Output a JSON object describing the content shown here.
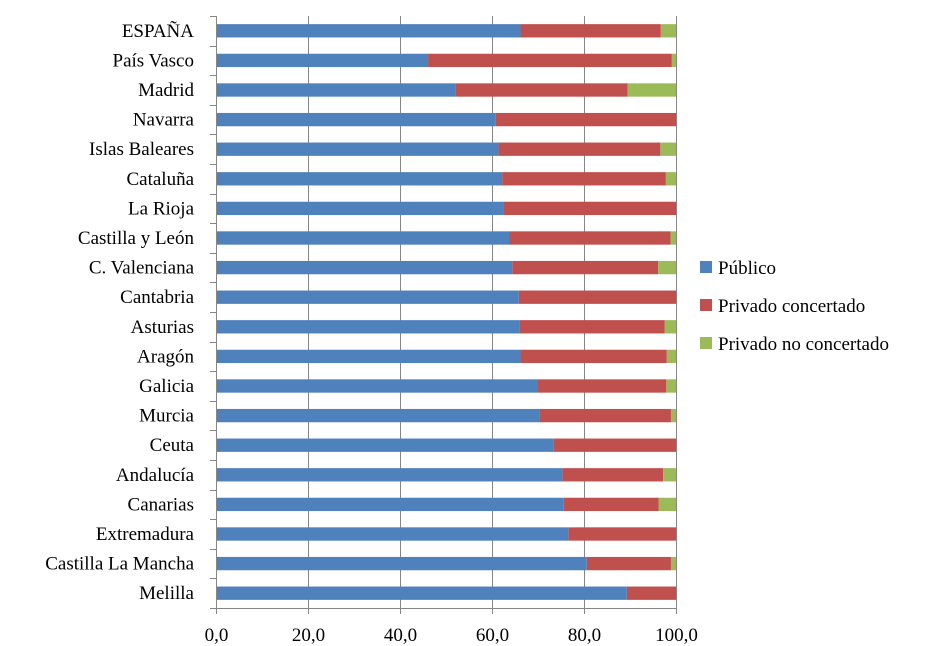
{
  "chart_data": {
    "type": "bar",
    "orientation": "horizontal",
    "stacked": true,
    "categories": [
      "ESPAÑA",
      "País Vasco",
      "Madrid",
      "Navarra",
      "Islas Baleares",
      "Cataluña",
      "La Rioja",
      "Castilla y León",
      "C. Valenciana",
      "Cantabria",
      "Asturias",
      "Aragón",
      "Galicia",
      "Murcia",
      "Ceuta",
      "Andalucía",
      "Canarias",
      "Extremadura",
      "Castilla La Mancha",
      "Melilla"
    ],
    "series": [
      {
        "name": "Público",
        "color": "#4F81BD",
        "values": [
          66.2,
          46.1,
          52.0,
          60.8,
          61.4,
          62.2,
          62.6,
          63.7,
          64.4,
          65.8,
          66.0,
          66.2,
          69.9,
          70.3,
          73.4,
          75.3,
          75.6,
          76.6,
          80.6,
          89.3
        ]
      },
      {
        "name": "Privado concertado",
        "color": "#C0504D",
        "values": [
          30.5,
          53.0,
          37.5,
          39.2,
          35.2,
          35.6,
          37.4,
          35.1,
          31.7,
          34.2,
          31.5,
          31.8,
          28.0,
          28.6,
          26.6,
          21.9,
          20.6,
          23.4,
          18.3,
          10.7
        ]
      },
      {
        "name": "Privado no concertado",
        "color": "#9BBB59",
        "values": [
          3.3,
          0.9,
          10.5,
          0.0,
          3.4,
          2.2,
          0.0,
          1.2,
          3.9,
          0.0,
          2.5,
          2.0,
          2.1,
          1.1,
          0.0,
          2.8,
          3.8,
          0.0,
          1.1,
          0.0
        ]
      }
    ],
    "xlim": [
      0,
      100
    ],
    "xticks": [
      "0,0",
      "20,0",
      "40,0",
      "60,0",
      "80,0",
      "100,0"
    ],
    "grid": true,
    "legend_position": "right"
  }
}
